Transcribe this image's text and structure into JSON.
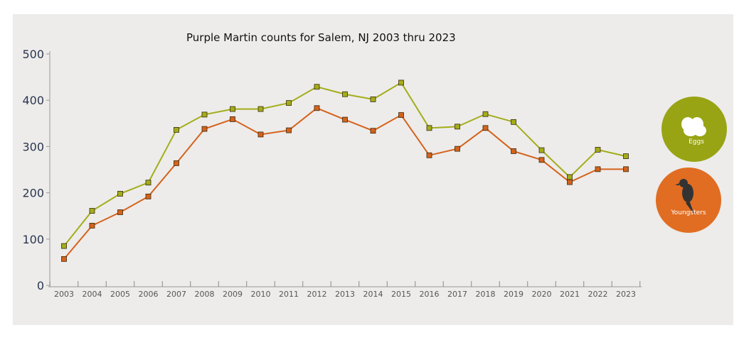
{
  "colors": {
    "eggs": "#a3ad1a",
    "youngsters": "#d5621c",
    "eggs_badge": "#98a413",
    "youngsters_badge": "#e06d22"
  },
  "legend": {
    "eggs_label": "Eggs",
    "youngsters_label": "Youngsters"
  },
  "chart_data": {
    "type": "line",
    "title": "Purple Martin counts for Salem, NJ 2003 thru 2023",
    "xlabel": "",
    "ylabel": "",
    "ylim": [
      0,
      500
    ],
    "yticks": [
      "0",
      "100",
      "200",
      "300",
      "400",
      "500"
    ],
    "categories": [
      "2003",
      "2004",
      "2005",
      "2006",
      "2007",
      "2008",
      "2009",
      "2010",
      "2011",
      "2012",
      "2013",
      "2014",
      "2015",
      "2016",
      "2017",
      "2018",
      "2019",
      "2020",
      "2021",
      "2022",
      "2023"
    ],
    "series": [
      {
        "name": "Eggs",
        "values": [
          85,
          161,
          198,
          222,
          336,
          369,
          381,
          381,
          394,
          429,
          413,
          402,
          438,
          340,
          343,
          370,
          353,
          292,
          234,
          293,
          279
        ]
      },
      {
        "name": "Youngsters",
        "values": [
          57,
          129,
          158,
          192,
          264,
          338,
          359,
          326,
          335,
          383,
          358,
          334,
          368,
          281,
          295,
          340,
          290,
          271,
          223,
          251,
          251
        ]
      }
    ]
  }
}
